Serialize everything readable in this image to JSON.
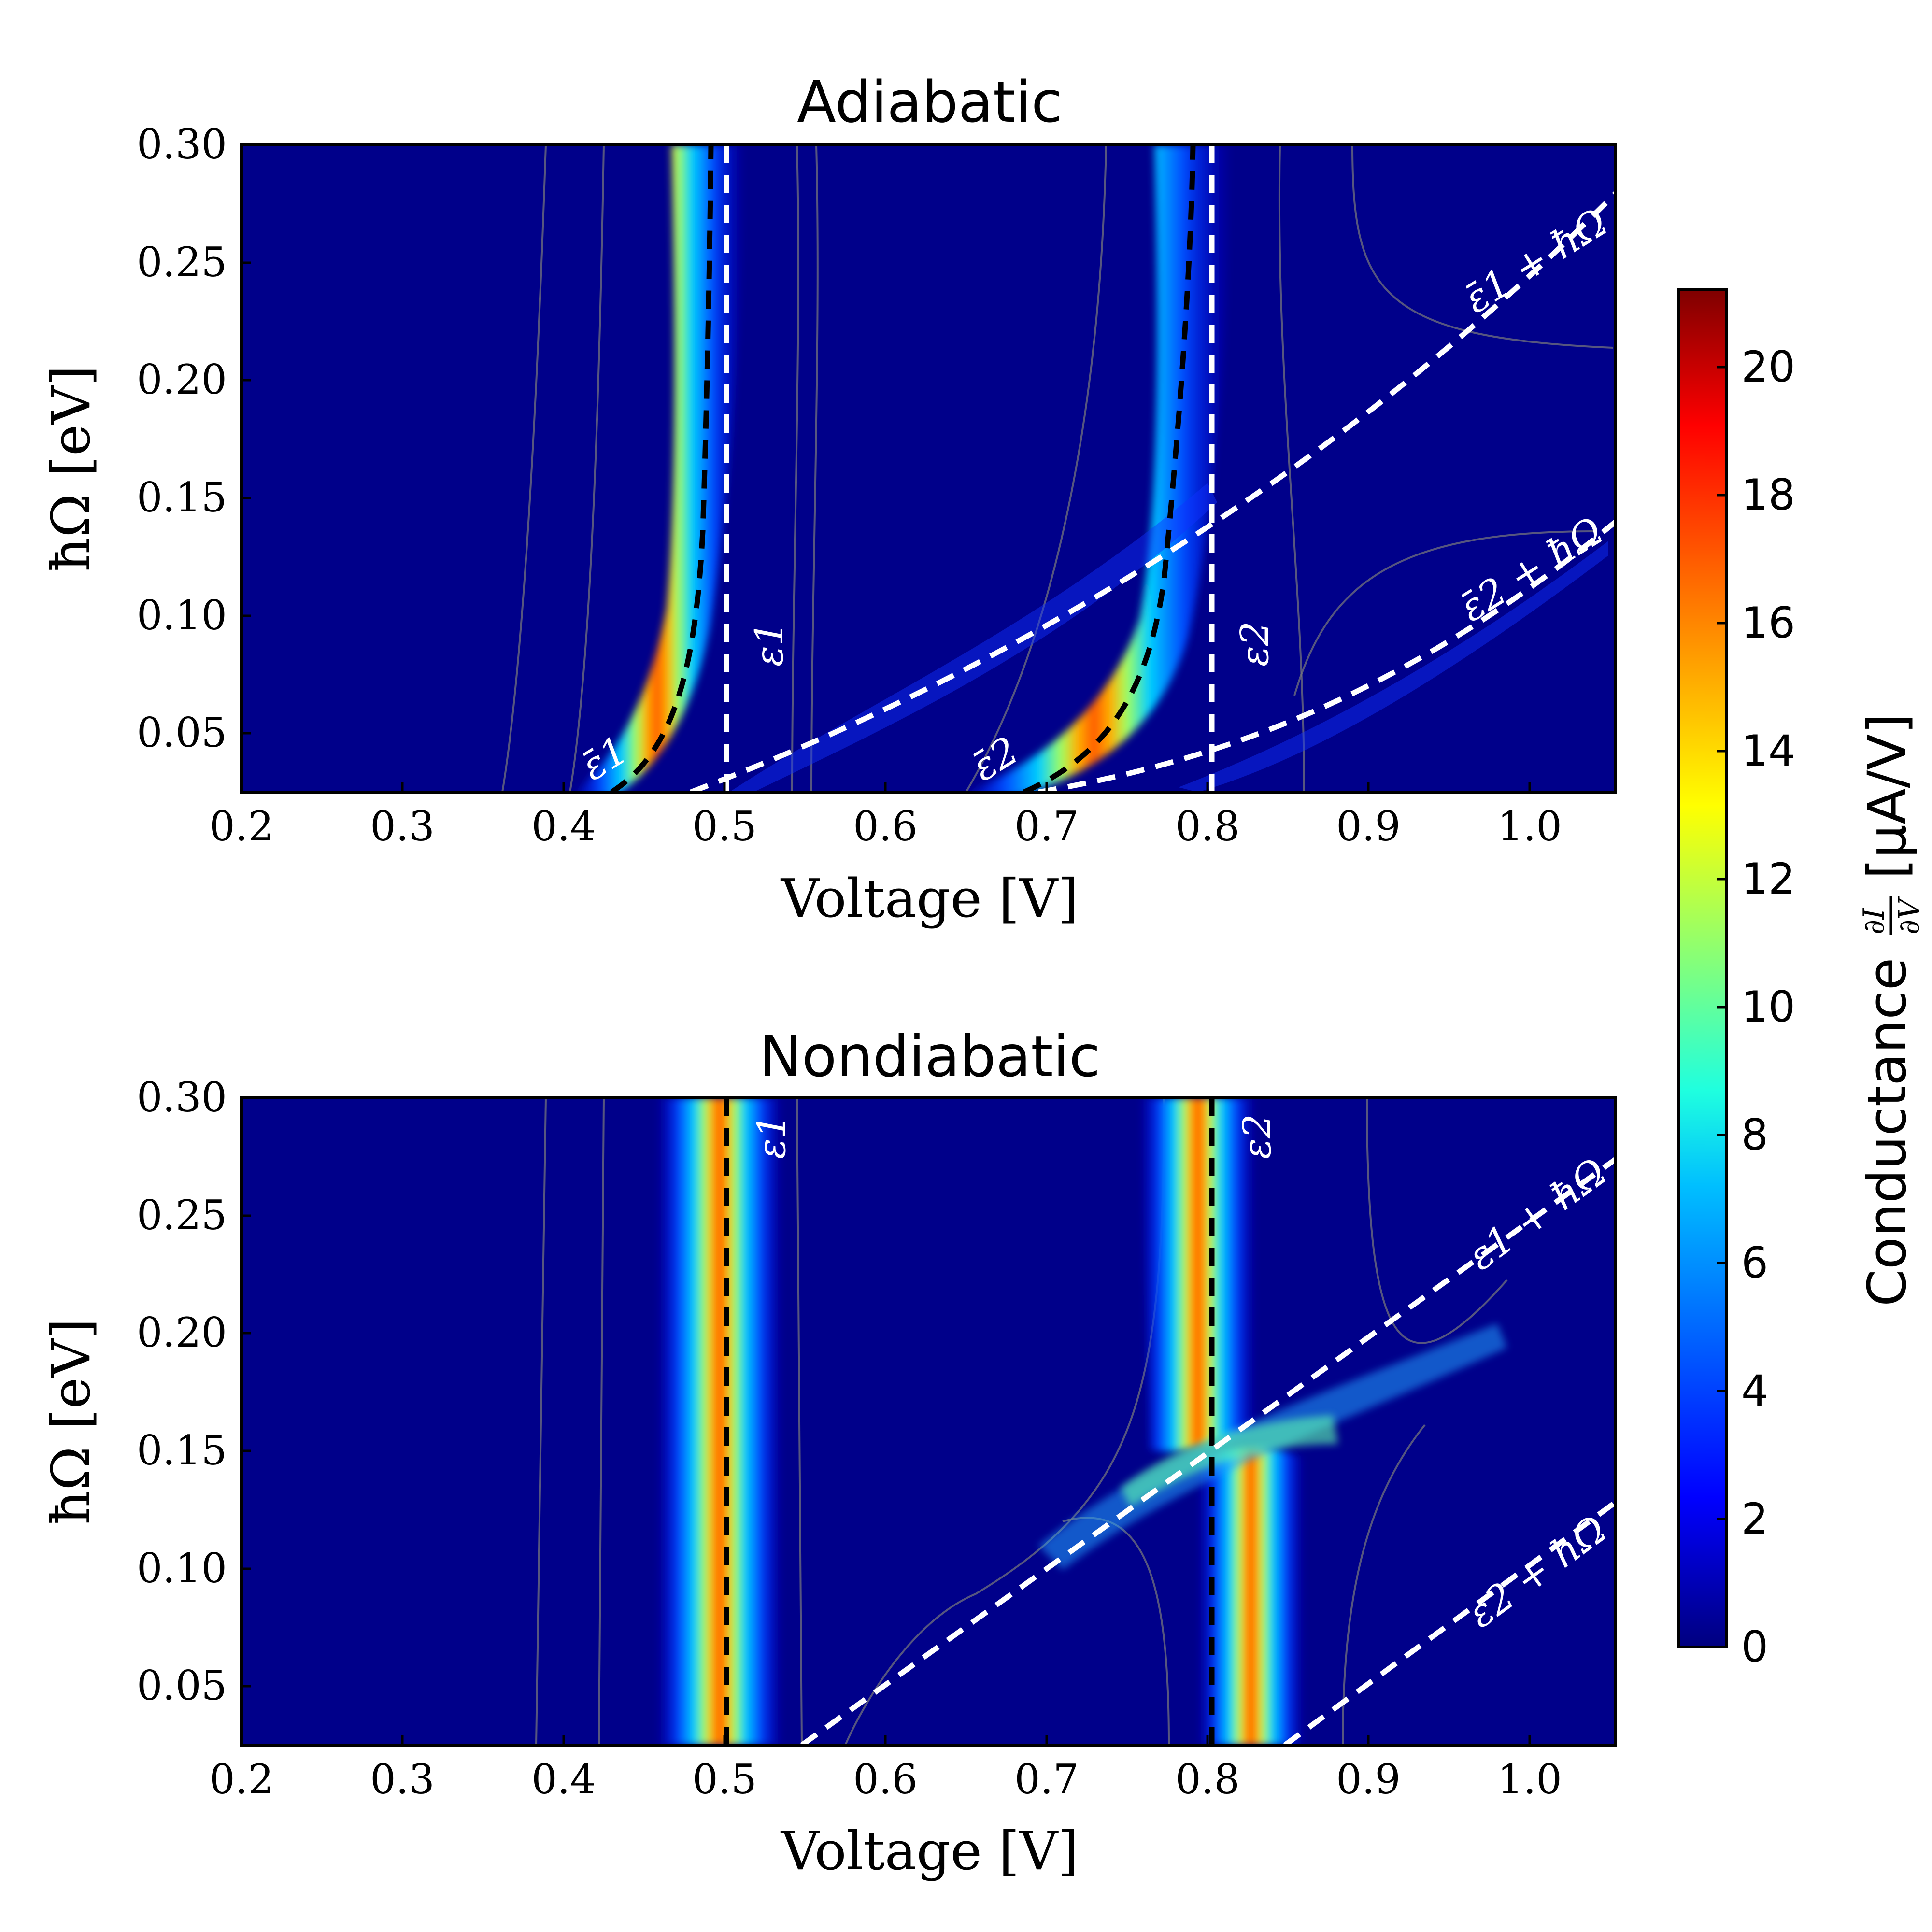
{
  "colorscale": {
    "label_prefix": "Conductance",
    "label_fraction_num": "∂I",
    "label_fraction_den": "∂V",
    "label_unit": "[μA/V]",
    "ticks": [
      "0",
      "2",
      "4",
      "6",
      "8",
      "10",
      "12",
      "14",
      "16",
      "18",
      "20"
    ],
    "vmin": 0,
    "vmax": 21.2,
    "stops": [
      "#00007f",
      "#0000ff",
      "#007fff",
      "#00ffff",
      "#7fff7f",
      "#ffff00",
      "#ff7f00",
      "#ff0000",
      "#7f0000"
    ]
  },
  "chart_data": [
    {
      "type": "heatmap",
      "title": "Adiabatic",
      "xlabel": "Voltage [V]",
      "ylabel": "ħΩ [eV]",
      "xlim": [
        0.2,
        1.055
      ],
      "ylim": [
        0.025,
        0.3
      ],
      "xticks": [
        "0.2",
        "0.3",
        "0.4",
        "0.5",
        "0.6",
        "0.7",
        "0.8",
        "0.9",
        "1.0"
      ],
      "yticks": [
        "0.30",
        "0.25",
        "0.20",
        "0.15",
        "0.10",
        "0.05"
      ],
      "grid": false,
      "levels": [
        {
          "label": "ε1",
          "voltage": 0.5
        },
        {
          "label": "ε2",
          "voltage": 0.8
        }
      ],
      "renormalized_levels": [
        {
          "label": "ε̄1",
          "formula": "voltage = 0.5 - 2*(0.025^2)/ħΩ... (polaron shift, approx)"
        }
      ],
      "annotations": [
        "ε1",
        "ε2",
        "ε̄1",
        "ε̄2",
        "ε̄1 + ħΩ",
        "ε̄2 + ħΩ"
      ]
    },
    {
      "type": "heatmap",
      "title": "Nondiabatic",
      "xlabel": "Voltage [V]",
      "ylabel": "ħΩ [eV]",
      "xlim": [
        0.2,
        1.055
      ],
      "ylim": [
        0.025,
        0.3
      ],
      "xticks": [
        "0.2",
        "0.3",
        "0.4",
        "0.5",
        "0.6",
        "0.7",
        "0.8",
        "0.9",
        "1.0"
      ],
      "yticks": [
        "0.30",
        "0.25",
        "0.20",
        "0.15",
        "0.10",
        "0.05"
      ],
      "grid": false,
      "levels": [
        {
          "label": "ε1",
          "voltage": 0.5
        },
        {
          "label": "ε2",
          "voltage": 0.8
        }
      ],
      "sidebands": [
        {
          "label": "ε1 + ħΩ",
          "offset": 0.5
        },
        {
          "label": "ε2 + ħΩ",
          "offset": 0.8
        }
      ],
      "annotations": [
        "ε1",
        "ε2",
        "ε1 + ħΩ",
        "ε2 + ħΩ"
      ]
    }
  ]
}
